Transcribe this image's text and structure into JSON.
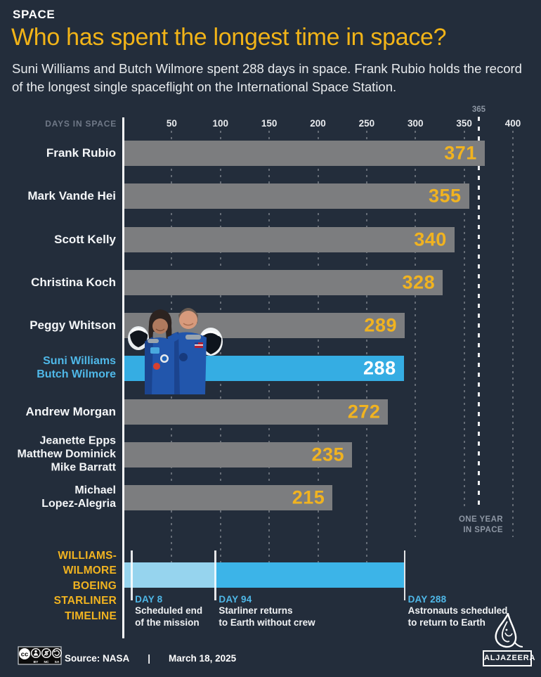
{
  "colors": {
    "background": "#232D3B",
    "bar_gray": "#7C7D7F",
    "bar_highlight": "#35ADE3",
    "value_yellow": "#F1B320",
    "value_on_highlight": "#FFFFFF",
    "label_blue": "#4FB8E8",
    "timeline_light": "#96D4EE",
    "timeline_main": "#3CB4E8"
  },
  "header": {
    "kicker": "SPACE",
    "title": "Who has spent the longest time in space?",
    "subtitle": "Suni Williams and Butch Wilmore spent 288 days in space. Frank Rubio holds the record of the longest single spaceflight on the International Space Station."
  },
  "chart_data": {
    "type": "bar",
    "orientation": "horizontal",
    "title": "Who has spent the longest time in space?",
    "axis_label": "DAYS IN SPACE",
    "xlim": [
      0,
      400
    ],
    "ticks": [
      50,
      100,
      150,
      200,
      250,
      300,
      350,
      400
    ],
    "grid": true,
    "reference_line": {
      "value": 365,
      "label": "365",
      "caption_lines": [
        "ONE YEAR",
        "IN SPACE"
      ]
    },
    "rows": [
      {
        "name_lines": [
          "Frank Rubio"
        ],
        "value": 371
      },
      {
        "name_lines": [
          "Mark Vande Hei"
        ],
        "value": 355
      },
      {
        "name_lines": [
          "Scott Kelly"
        ],
        "value": 340
      },
      {
        "name_lines": [
          "Christina Koch"
        ],
        "value": 328
      },
      {
        "name_lines": [
          "Peggy Whitson"
        ],
        "value": 289
      },
      {
        "name_lines": [
          "Suni Williams",
          "Butch Wilmore"
        ],
        "value": 288,
        "highlight": true
      },
      {
        "name_lines": [
          "Andrew Morgan"
        ],
        "value": 272
      },
      {
        "name_lines": [
          "Jeanette Epps",
          "Matthew Dominick",
          "Mike Barratt"
        ],
        "value": 235
      },
      {
        "name_lines": [
          "Michael",
          "Lopez-Alegria"
        ],
        "value": 215
      }
    ]
  },
  "timeline": {
    "title_lines": [
      "WILLIAMS-",
      "WILMORE",
      "BOEING",
      "STARLINER",
      "TIMELINE"
    ],
    "xlim": [
      0,
      400
    ],
    "segments": [
      {
        "from": 0,
        "to": 94,
        "color_key": "timeline_light"
      },
      {
        "from": 94,
        "to": 288,
        "color_key": "timeline_main"
      }
    ],
    "events": [
      {
        "day": 8,
        "label": "DAY 8",
        "lines": [
          "Scheduled end",
          "of the mission"
        ]
      },
      {
        "day": 94,
        "label": "DAY 94",
        "lines": [
          "Starliner returns",
          "to Earth without crew"
        ]
      },
      {
        "day": 288,
        "label": "DAY 288",
        "lines": [
          "Astronauts scheduled",
          "to return to Earth"
        ]
      }
    ]
  },
  "footer": {
    "source_label": "Source: NASA",
    "separator": "|",
    "date": "March 18, 2025",
    "brand": "ALJAZEERA",
    "cc_label": "cc",
    "license": [
      "BY",
      "NC",
      "SA"
    ]
  }
}
